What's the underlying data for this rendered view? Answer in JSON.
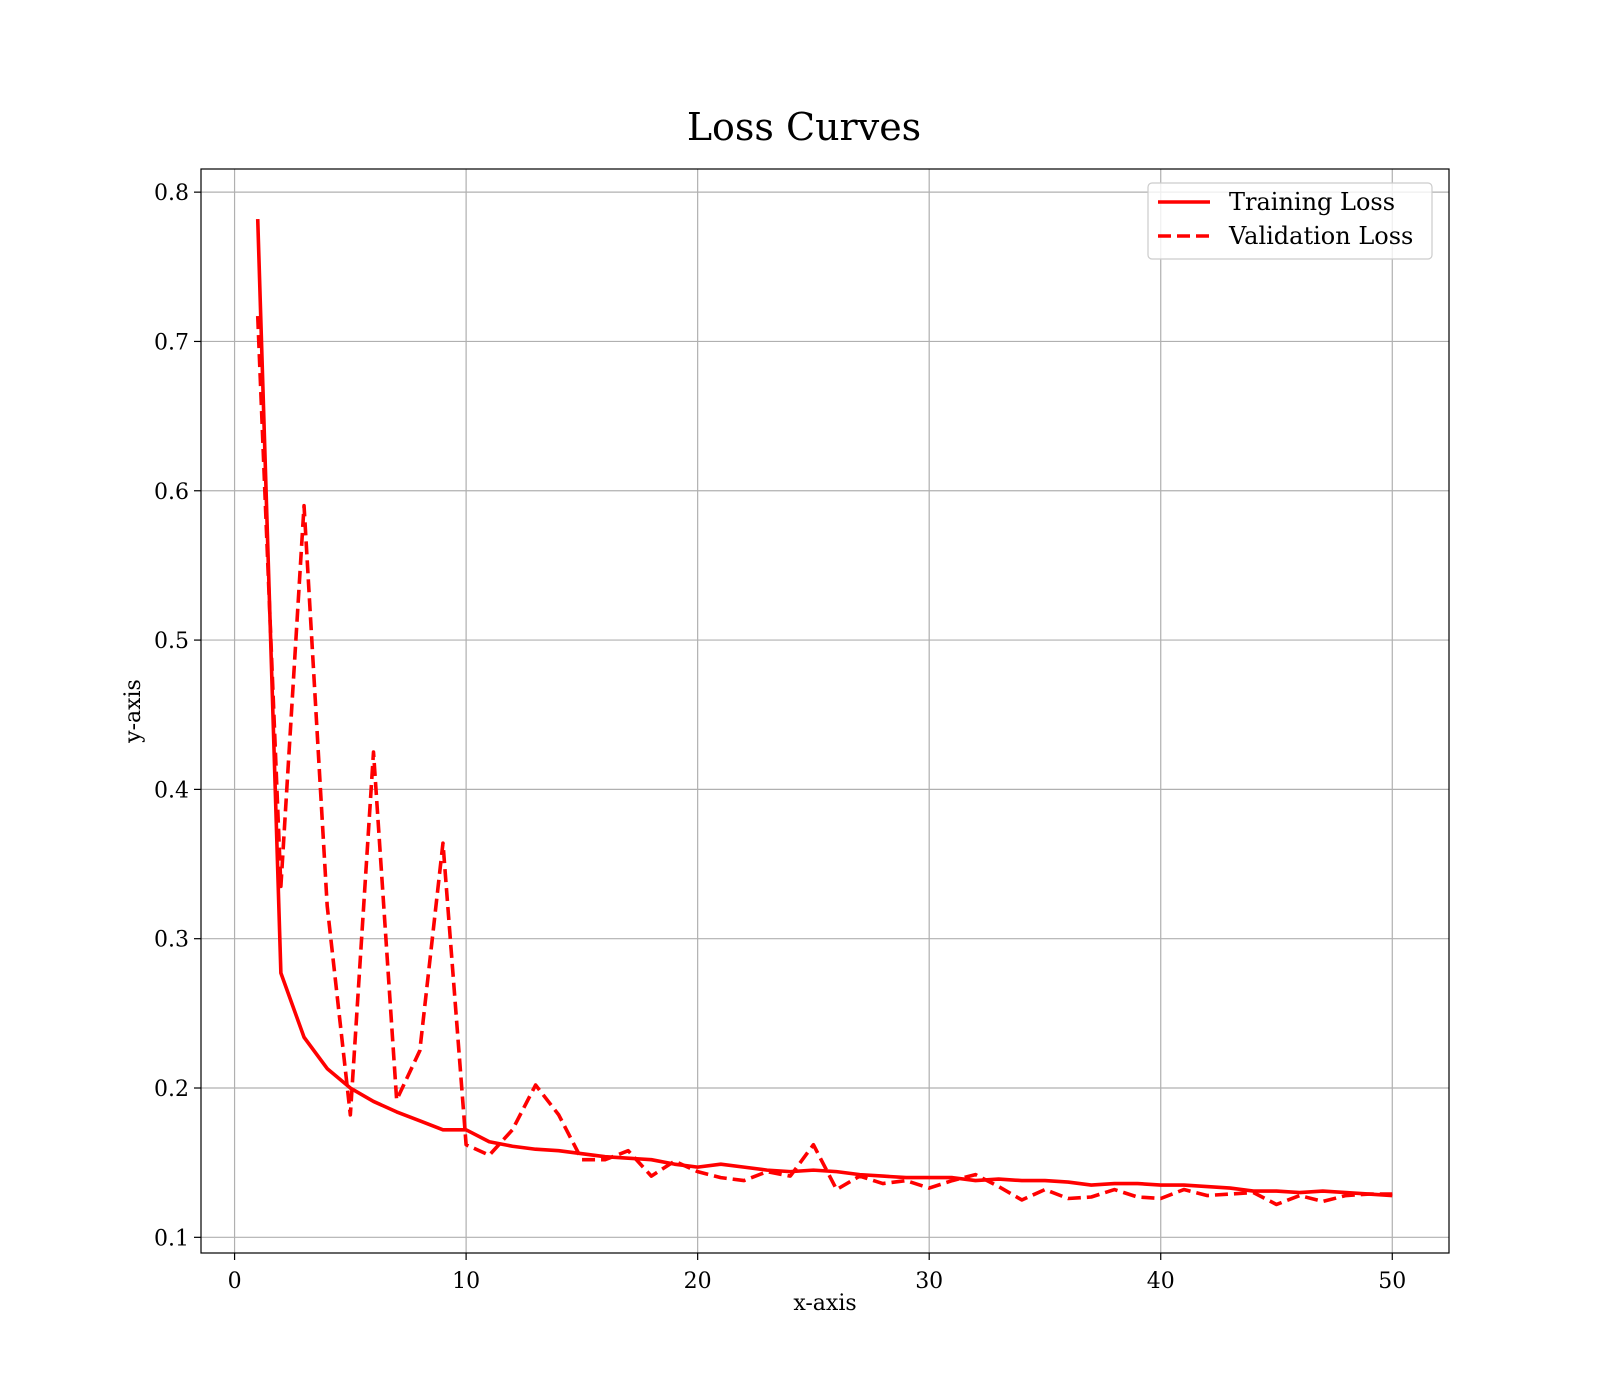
{
  "chart_data": {
    "type": "line",
    "title": "Loss Curves",
    "xlabel": "x-axis",
    "ylabel": "y-axis",
    "xlim": [
      -1.45,
      52.45
    ],
    "ylim": [
      0.0895,
      0.8155
    ],
    "xticks": [
      0,
      10,
      20,
      30,
      40,
      50
    ],
    "yticks": [
      0.1,
      0.2,
      0.3,
      0.4,
      0.5,
      0.6,
      0.7,
      0.8
    ],
    "grid": true,
    "legend_position": "top-right",
    "x": [
      1,
      2,
      3,
      4,
      5,
      6,
      7,
      8,
      9,
      10,
      11,
      12,
      13,
      14,
      15,
      16,
      17,
      18,
      19,
      20,
      21,
      22,
      23,
      24,
      25,
      26,
      27,
      28,
      29,
      30,
      31,
      32,
      33,
      34,
      35,
      36,
      37,
      38,
      39,
      40,
      41,
      42,
      43,
      44,
      45,
      46,
      47,
      48,
      49,
      50
    ],
    "series": [
      {
        "name": "Training Loss",
        "color": "#ff0000",
        "style": "solid",
        "values": [
          0.782,
          0.277,
          0.234,
          0.213,
          0.2,
          0.191,
          0.184,
          0.178,
          0.172,
          0.172,
          0.164,
          0.161,
          0.159,
          0.158,
          0.156,
          0.154,
          0.153,
          0.152,
          0.149,
          0.147,
          0.149,
          0.147,
          0.145,
          0.144,
          0.145,
          0.144,
          0.142,
          0.141,
          0.14,
          0.14,
          0.14,
          0.138,
          0.139,
          0.138,
          0.138,
          0.137,
          0.135,
          0.136,
          0.136,
          0.135,
          0.135,
          0.134,
          0.133,
          0.131,
          0.131,
          0.13,
          0.131,
          0.13,
          0.129,
          0.128
        ]
      },
      {
        "name": "Validation Loss",
        "color": "#ff0000",
        "style": "dashed",
        "values": [
          0.717,
          0.335,
          0.59,
          0.322,
          0.182,
          0.425,
          0.192,
          0.225,
          0.364,
          0.162,
          0.155,
          0.172,
          0.202,
          0.182,
          0.152,
          0.152,
          0.158,
          0.141,
          0.151,
          0.144,
          0.14,
          0.138,
          0.144,
          0.141,
          0.162,
          0.132,
          0.141,
          0.136,
          0.138,
          0.133,
          0.138,
          0.142,
          0.134,
          0.125,
          0.132,
          0.126,
          0.127,
          0.132,
          0.127,
          0.126,
          0.132,
          0.128,
          0.129,
          0.13,
          0.122,
          0.128,
          0.124,
          0.128,
          0.129,
          0.129
        ]
      }
    ]
  }
}
